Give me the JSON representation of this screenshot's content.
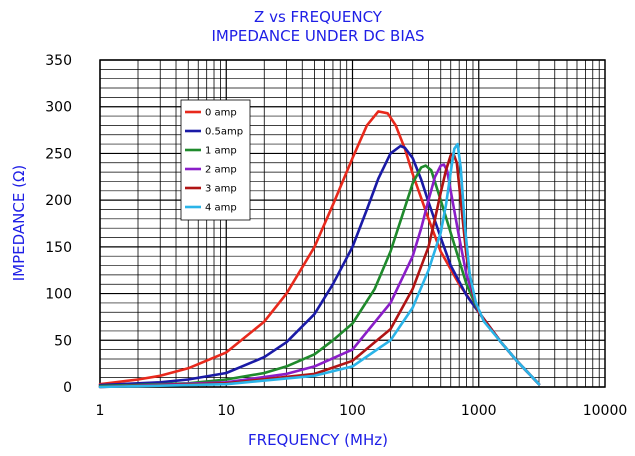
{
  "chart_data": {
    "type": "line",
    "title": "Z vs FREQUENCY",
    "subtitle": "IMPEDANCE UNDER DC BIAS",
    "xlabel": "FREQUENCY (MHz)",
    "ylabel": "IMPEDANCE (Ω)",
    "xscale": "log",
    "xlim": [
      1,
      10000
    ],
    "ylim": [
      0,
      350
    ],
    "xticks": [
      "1",
      "10",
      "100",
      "1000",
      "10000"
    ],
    "yticks": [
      "0",
      "50",
      "100",
      "150",
      "200",
      "250",
      "300",
      "350"
    ],
    "grid": true,
    "legend_position": "upper-left",
    "series": [
      {
        "name": "0 amp",
        "color": "#e8291c",
        "x": [
          1,
          2,
          3,
          5,
          10,
          20,
          30,
          50,
          70,
          100,
          130,
          160,
          190,
          220,
          260,
          300,
          400,
          500,
          700,
          1000,
          1500,
          2000,
          3000
        ],
        "y": [
          3,
          8,
          12,
          20,
          37,
          70,
          100,
          150,
          195,
          245,
          280,
          295,
          293,
          280,
          255,
          228,
          180,
          145,
          110,
          80,
          48,
          28,
          3
        ]
      },
      {
        "name": "0.5amp",
        "color": "#1a1aa6",
        "x": [
          1,
          3,
          5,
          10,
          20,
          30,
          50,
          70,
          100,
          130,
          160,
          200,
          240,
          260,
          300,
          350,
          400,
          500,
          600,
          800,
          1000,
          1500,
          2000,
          3000
        ],
        "y": [
          2,
          5,
          8,
          15,
          32,
          48,
          78,
          110,
          150,
          190,
          223,
          250,
          258,
          256,
          245,
          222,
          198,
          160,
          130,
          98,
          80,
          48,
          28,
          3
        ]
      },
      {
        "name": "1 amp",
        "color": "#1f8a2c",
        "x": [
          1,
          5,
          10,
          20,
          30,
          50,
          70,
          100,
          150,
          200,
          250,
          300,
          350,
          380,
          420,
          500,
          600,
          800,
          1000,
          1500,
          2000,
          3000
        ],
        "y": [
          1,
          4,
          8,
          15,
          22,
          35,
          50,
          68,
          105,
          145,
          185,
          218,
          235,
          237,
          232,
          200,
          165,
          110,
          80,
          48,
          28,
          3
        ]
      },
      {
        "name": "2 amp",
        "color": "#8a1ec8",
        "x": [
          1,
          10,
          30,
          50,
          100,
          200,
          300,
          350,
          400,
          450,
          500,
          530,
          560,
          600,
          700,
          800,
          1000,
          1500,
          2000,
          3000
        ],
        "y": [
          0,
          5,
          14,
          22,
          40,
          90,
          140,
          170,
          200,
          225,
          237,
          238,
          232,
          210,
          160,
          120,
          80,
          48,
          28,
          3
        ]
      },
      {
        "name": "3 amp",
        "color": "#b01414",
        "x": [
          1,
          10,
          50,
          100,
          200,
          300,
          400,
          450,
          500,
          550,
          600,
          630,
          670,
          720,
          800,
          900,
          1000,
          1500,
          2000,
          3000
        ],
        "y": [
          0,
          4,
          14,
          28,
          62,
          105,
          150,
          180,
          208,
          232,
          248,
          250,
          240,
          200,
          140,
          100,
          80,
          48,
          28,
          3
        ]
      },
      {
        "name": "4 amp",
        "color": "#2ab4e8",
        "x": [
          1,
          10,
          50,
          100,
          200,
          300,
          400,
          500,
          550,
          600,
          640,
          680,
          720,
          780,
          850,
          950,
          1100,
          1500,
          2000,
          3000
        ],
        "y": [
          0,
          3,
          12,
          22,
          50,
          85,
          125,
          165,
          195,
          230,
          255,
          260,
          235,
          170,
          120,
          90,
          70,
          48,
          28,
          3
        ]
      }
    ]
  }
}
